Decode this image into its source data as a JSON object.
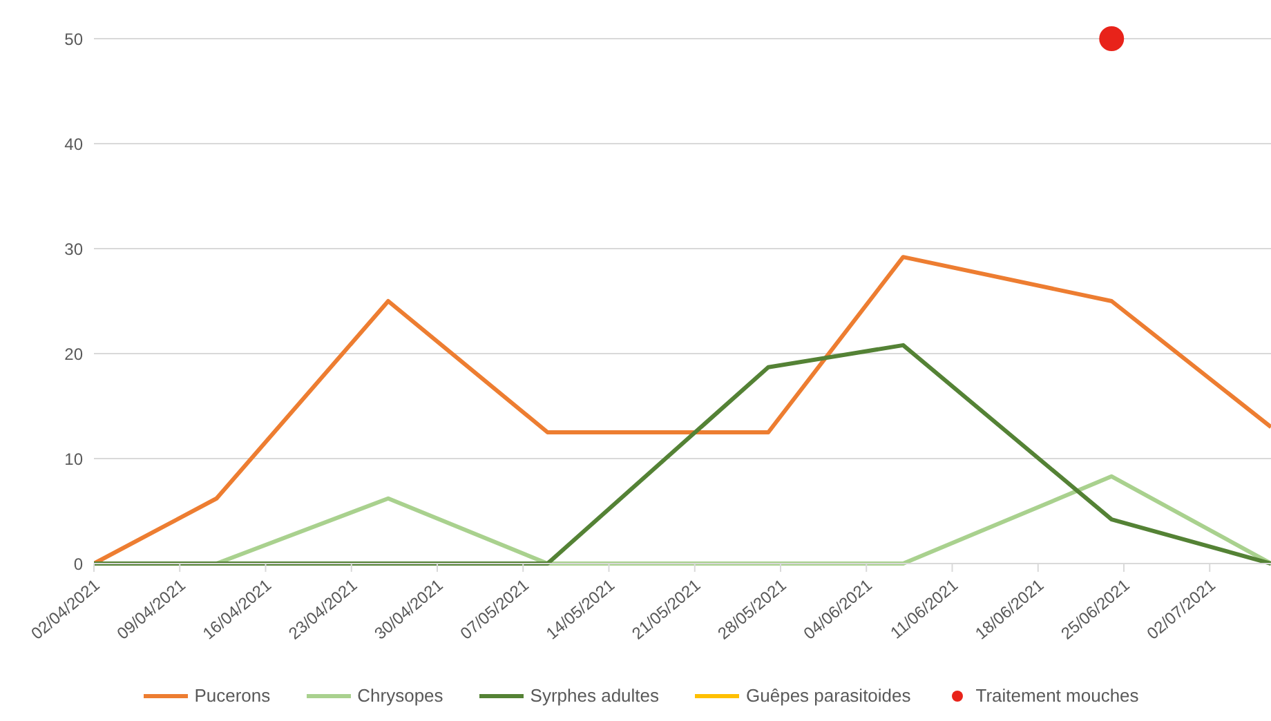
{
  "chart_data": {
    "type": "line",
    "x": [
      "2021-04-02",
      "2021-04-12",
      "2021-04-26",
      "2021-05-09",
      "2021-05-27",
      "2021-06-07",
      "2021-06-24",
      "2021-07-07"
    ],
    "series": [
      {
        "name": "Pucerons",
        "color": "#ed7d31",
        "values": [
          0,
          6.2,
          25,
          12.5,
          12.5,
          29.2,
          25,
          13
        ]
      },
      {
        "name": "Chrysopes",
        "color": "#a9d18e",
        "values": [
          0,
          0,
          6.2,
          0,
          0,
          0,
          8.3,
          0
        ]
      },
      {
        "name": "Syrphes adultes",
        "color": "#548235",
        "values": [
          0,
          0,
          0,
          0,
          18.7,
          20.8,
          4.2,
          0
        ]
      },
      {
        "name": "Guêpes parasitoides",
        "color": "#ffc000",
        "values": [
          null,
          null,
          null,
          null,
          null,
          null,
          null,
          null
        ]
      },
      {
        "name": "Traitement mouches",
        "type": "scatter",
        "marker": "circle",
        "color": "#e8231a",
        "x": [
          "2021-06-24"
        ],
        "values": [
          50
        ]
      }
    ],
    "xlim": [
      "2021-04-02",
      "2021-07-07"
    ],
    "xticks": [
      {
        "value": "2021-04-02",
        "label": "02/04/2021"
      },
      {
        "value": "2021-04-09",
        "label": "09/04/2021"
      },
      {
        "value": "2021-04-16",
        "label": "16/04/2021"
      },
      {
        "value": "2021-04-23",
        "label": "23/04/2021"
      },
      {
        "value": "2021-04-30",
        "label": "30/04/2021"
      },
      {
        "value": "2021-05-07",
        "label": "07/05/2021"
      },
      {
        "value": "2021-05-14",
        "label": "14/05/2021"
      },
      {
        "value": "2021-05-21",
        "label": "21/05/2021"
      },
      {
        "value": "2021-05-28",
        "label": "28/05/2021"
      },
      {
        "value": "2021-06-04",
        "label": "04/06/2021"
      },
      {
        "value": "2021-06-11",
        "label": "11/06/2021"
      },
      {
        "value": "2021-06-18",
        "label": "18/06/2021"
      },
      {
        "value": "2021-06-25",
        "label": "25/06/2021"
      },
      {
        "value": "2021-07-02",
        "label": "02/07/2021"
      }
    ],
    "ylim": [
      0,
      50
    ],
    "yticks": [
      0,
      10,
      20,
      30,
      40,
      50
    ],
    "grid": "y",
    "legend": "bottom",
    "marker": "none"
  }
}
